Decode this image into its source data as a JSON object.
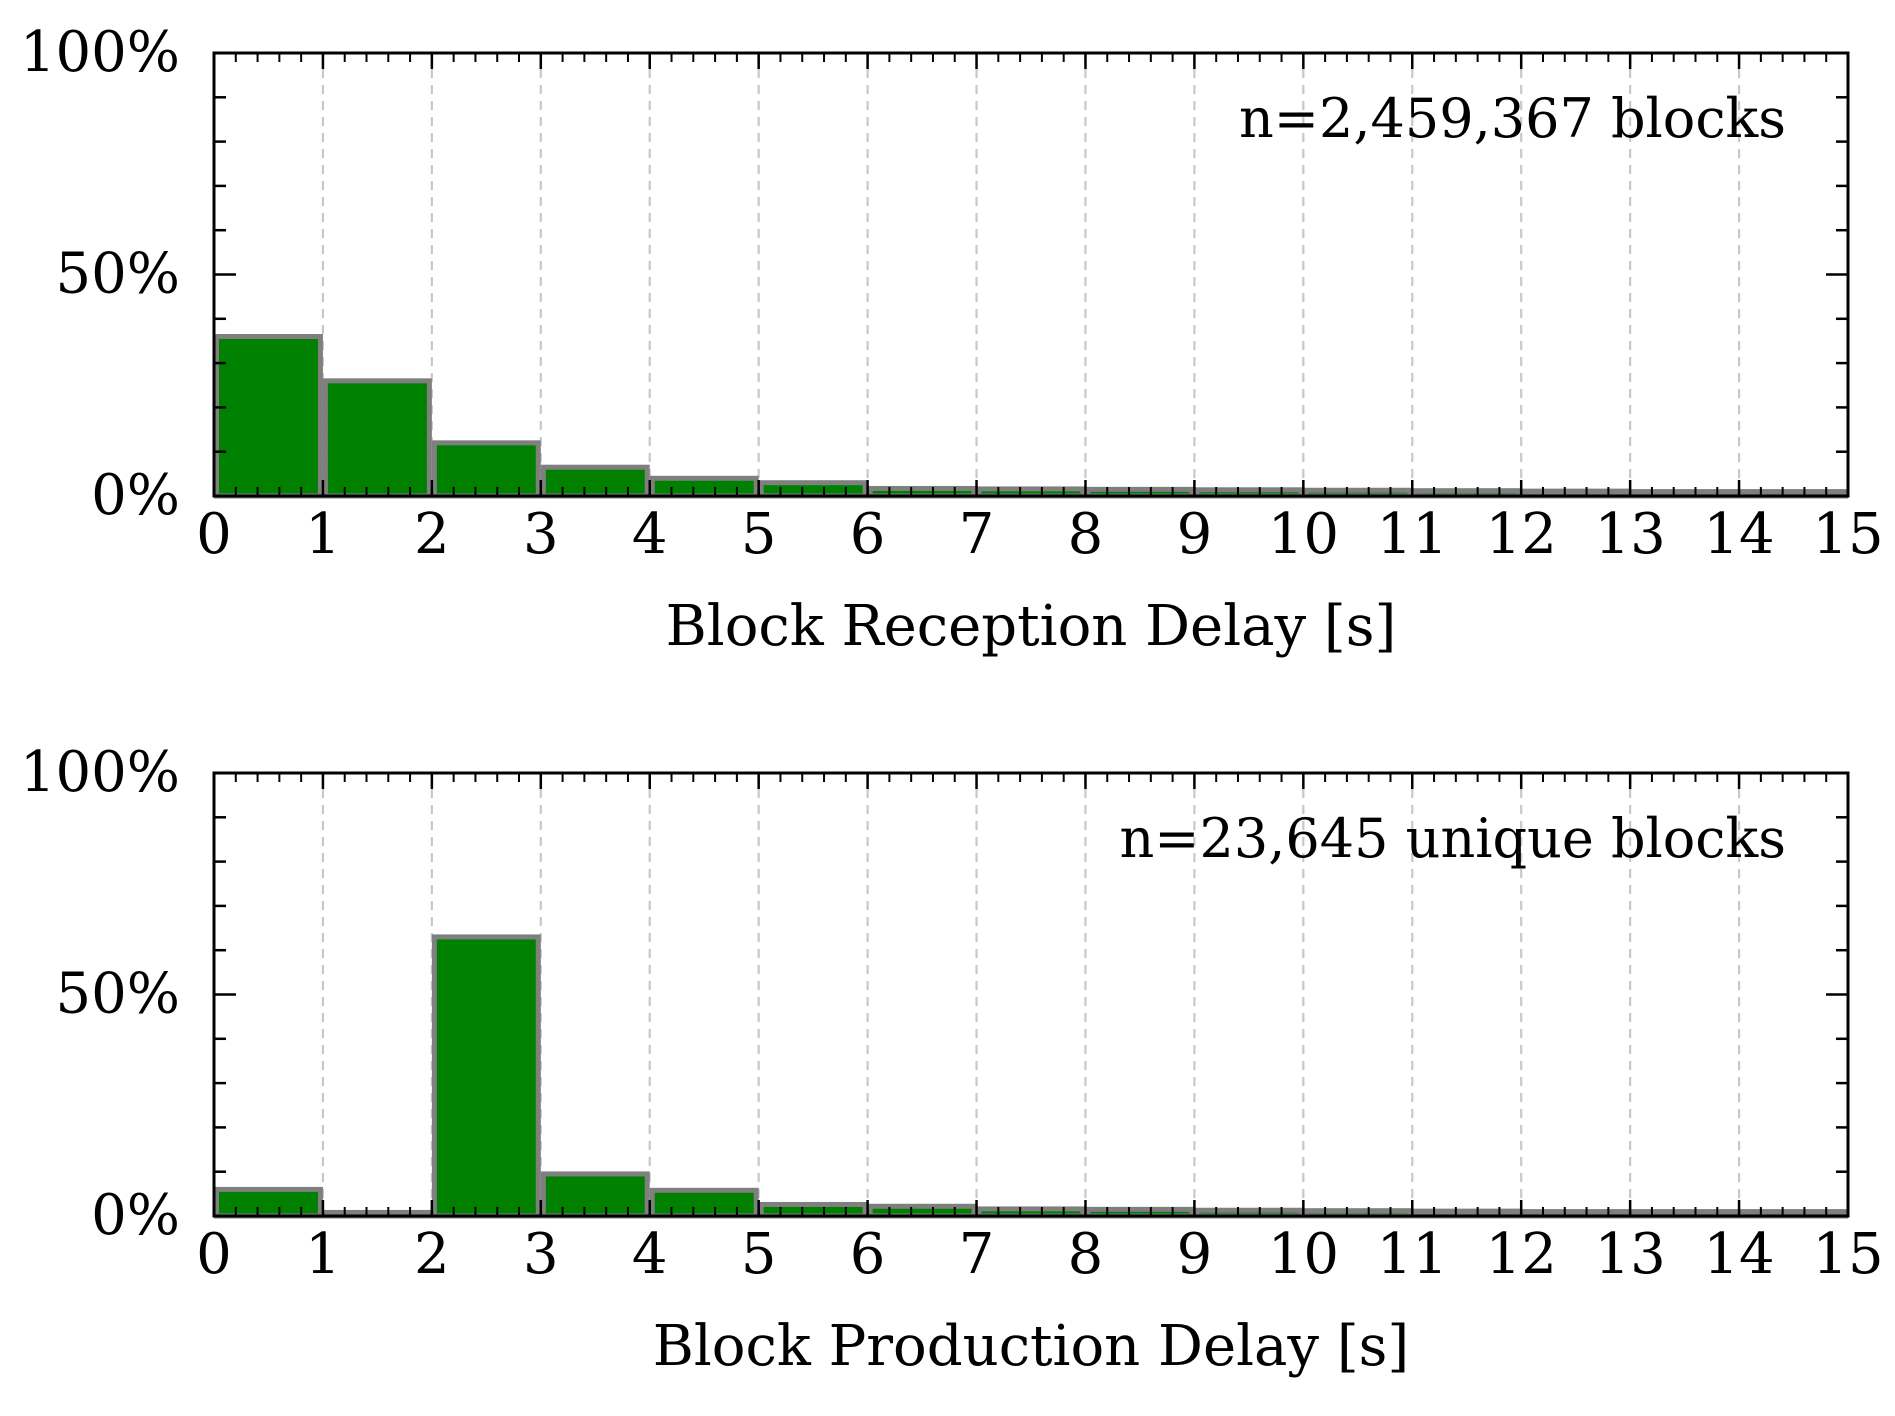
{
  "colors": {
    "bar_fill": "#008000",
    "bar_edge": "#7f7f7f",
    "grid": "#c8c8c8",
    "axis": "#000000"
  },
  "chart_data": [
    {
      "type": "bar",
      "histogram": true,
      "bin_edges": [
        0,
        1,
        2,
        3,
        4,
        5,
        6,
        7,
        8,
        9,
        10,
        11,
        12,
        13,
        14,
        15
      ],
      "values": [
        36,
        26,
        12,
        6.5,
        4,
        3,
        1.7,
        1.6,
        1.5,
        1.4,
        1.3,
        1.2,
        1.1,
        1.0,
        1.0
      ],
      "xlabel": "Block Reception Delay [s]",
      "ylabel": "",
      "xlim": [
        0,
        15
      ],
      "ylim": [
        0,
        100
      ],
      "x_ticks": [
        "0",
        "1",
        "2",
        "3",
        "4",
        "5",
        "6",
        "7",
        "8",
        "9",
        "10",
        "11",
        "12",
        "13",
        "14",
        "15"
      ],
      "y_ticks": [
        {
          "value": 0,
          "label": "0%"
        },
        {
          "value": 50,
          "label": "50%"
        },
        {
          "value": 100,
          "label": "100%"
        }
      ],
      "annotation": "n=2,459,367 blocks",
      "grid": "vertical dashed",
      "legend": "none"
    },
    {
      "type": "bar",
      "histogram": true,
      "bin_edges": [
        0,
        1,
        2,
        3,
        4,
        5,
        6,
        7,
        8,
        9,
        10,
        11,
        12,
        13,
        14,
        15
      ],
      "values": [
        6,
        0.8,
        63,
        9.5,
        5.8,
        2.6,
        2.2,
        1.6,
        1.5,
        1.3,
        1.2,
        1.1,
        1.0,
        1.0,
        1.0
      ],
      "xlabel": "Block Production Delay [s]",
      "ylabel": "",
      "xlim": [
        0,
        15
      ],
      "ylim": [
        0,
        100
      ],
      "x_ticks": [
        "0",
        "1",
        "2",
        "3",
        "4",
        "5",
        "6",
        "7",
        "8",
        "9",
        "10",
        "11",
        "12",
        "13",
        "14",
        "15"
      ],
      "y_ticks": [
        {
          "value": 0,
          "label": "0%"
        },
        {
          "value": 50,
          "label": "50%"
        },
        {
          "value": 100,
          "label": "100%"
        }
      ],
      "annotation": "n=23,645 unique blocks",
      "grid": "vertical dashed",
      "legend": "none"
    }
  ]
}
